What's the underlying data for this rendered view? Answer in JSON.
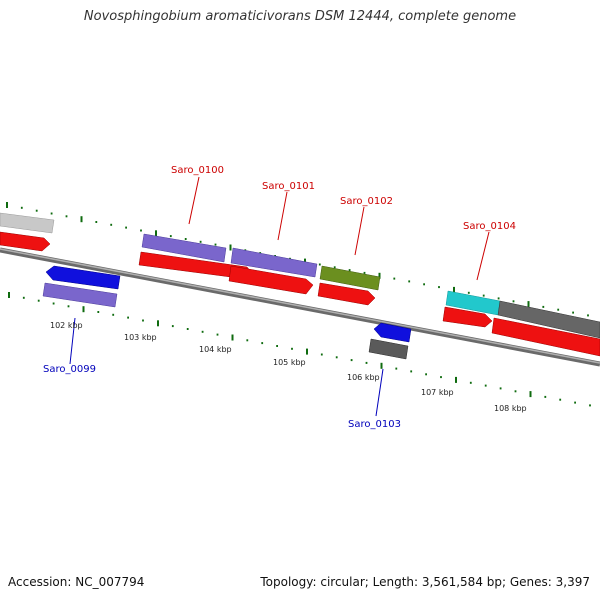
{
  "title": "Novosphingobium aromaticivorans DSM 12444, complete genome",
  "footer": {
    "accession": "Accession: NC_007794",
    "info": "Topology: circular; Length: 3,561,584 bp; Genes: 3,397"
  },
  "colors": {
    "forward_gene": "#ee1111",
    "reverse_gene": "#1010dd",
    "cog_purple": "#7a66cc",
    "cog_olive": "#6b8f1f",
    "cog_cyan": "#22c8cc",
    "cog_gray": "#555555",
    "cog_lightgray": "#c8c8c8",
    "forward_label": "#cc0000",
    "reverse_label": "#0000bb",
    "tick": "#0f6b0f",
    "backbone": "#888888"
  },
  "scale": {
    "labels": [
      "102 kbp",
      "103 kbp",
      "104 kbp",
      "105 kbp",
      "106 kbp",
      "107 kbp",
      "108 kbp"
    ]
  },
  "gene_labels": [
    {
      "name": "Saro_0099",
      "strand": "reverse"
    },
    {
      "name": "Saro_0100",
      "strand": "forward"
    },
    {
      "name": "Saro_0101",
      "strand": "forward"
    },
    {
      "name": "Saro_0102",
      "strand": "forward"
    },
    {
      "name": "Saro_0103",
      "strand": "reverse"
    },
    {
      "name": "Saro_0104",
      "strand": "forward"
    }
  ]
}
